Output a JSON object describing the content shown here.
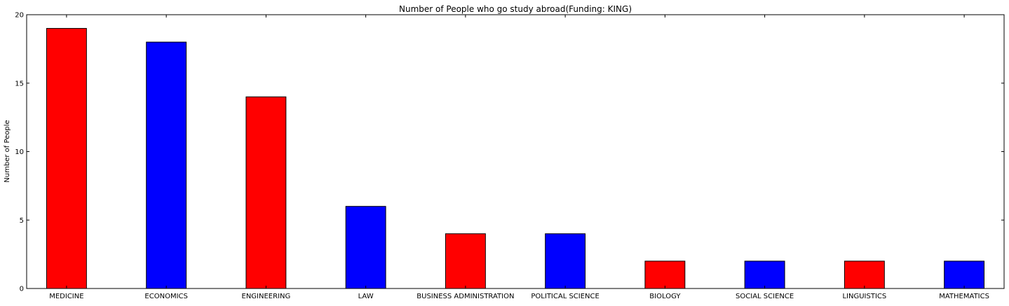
{
  "chart_data": {
    "type": "bar",
    "title": "Number of People who go study abroad(Funding: KING)",
    "xlabel": "",
    "ylabel": "Number of People",
    "ylim": [
      0,
      20
    ],
    "yticks": [
      0,
      5,
      10,
      15,
      20
    ],
    "categories": [
      "MEDICINE",
      "ECONOMICS",
      "ENGINEERING",
      "LAW",
      "BUSINESS ADMINISTRATION",
      "POLITICAL SCIENCE",
      "BIOLOGY",
      "SOCIAL SCIENCE",
      "LINGUISTICS",
      "MATHEMATICS"
    ],
    "values": [
      19,
      18,
      14,
      6,
      4,
      4,
      2,
      2,
      2,
      2
    ],
    "bar_colors": [
      "#ff0000",
      "#0000ff",
      "#ff0000",
      "#0000ff",
      "#ff0000",
      "#0000ff",
      "#ff0000",
      "#0000ff",
      "#ff0000",
      "#0000ff"
    ],
    "grid": false,
    "legend": "none"
  }
}
